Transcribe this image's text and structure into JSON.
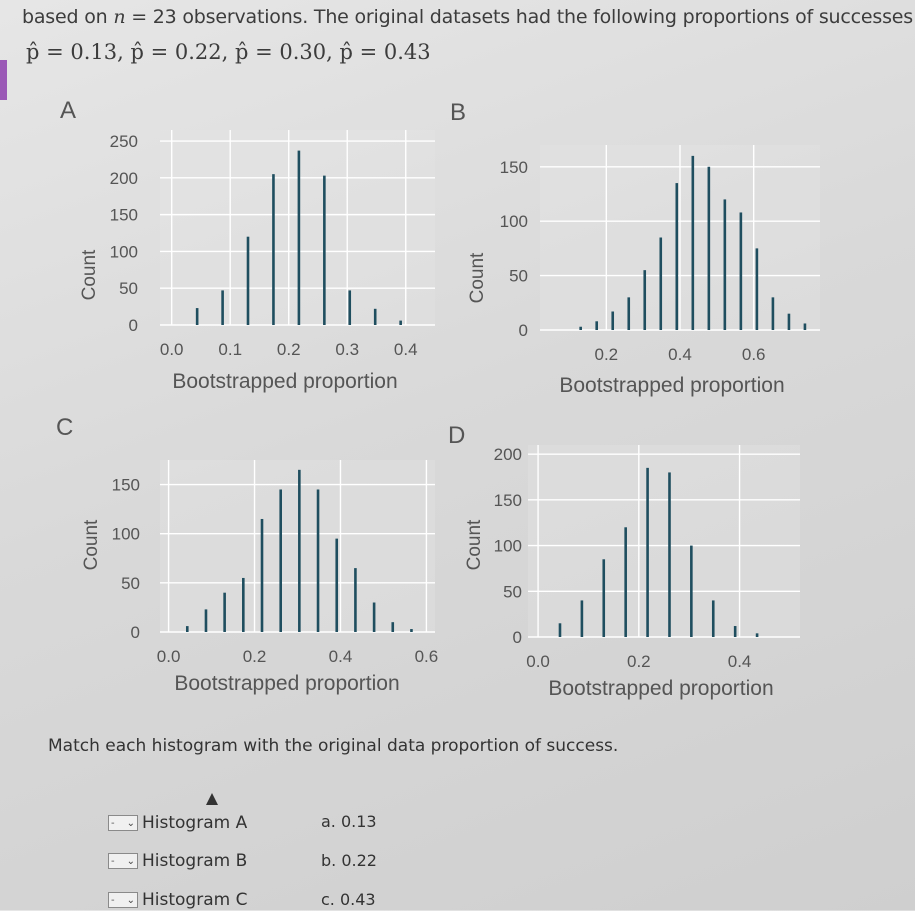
{
  "header": {
    "line1_pre": "based on ",
    "line1_n": "n",
    "line1_eq": " = 23",
    "line1_post": " observations. The original datasets had the following proportions of successes:",
    "line2": "p̂ = 0.13, p̂ = 0.22, p̂ = 0.30, p̂ = 0.43"
  },
  "chart_data": [
    {
      "panel": "A",
      "type": "bar",
      "xlabel": "Bootstrapped proportion",
      "ylabel": "Count",
      "xlim": [
        -0.02,
        0.45
      ],
      "ylim": [
        0,
        265
      ],
      "xticks": [
        "0.0",
        "0.1",
        "0.2",
        "0.3",
        "0.4"
      ],
      "yticks": [
        "250",
        "200",
        "150",
        "100",
        "50",
        "0"
      ],
      "x": [
        0.0435,
        0.087,
        0.1304,
        0.1739,
        0.2174,
        0.2609,
        0.3043,
        0.3478,
        0.3913
      ],
      "values": [
        23,
        47,
        120,
        205,
        237,
        203,
        47,
        22,
        6
      ],
      "color": "#1f4e5f"
    },
    {
      "panel": "B",
      "type": "bar",
      "xlabel": "Bootstrapped proportion",
      "ylabel": "Count",
      "xlim": [
        0.02,
        0.78
      ],
      "ylim": [
        0,
        170
      ],
      "xticks": [
        "0.2",
        "0.4",
        "0.6"
      ],
      "yticks": [
        "150",
        "100",
        "50",
        "0"
      ],
      "x": [
        0.1304,
        0.1739,
        0.2174,
        0.2609,
        0.3043,
        0.3478,
        0.3913,
        0.4348,
        0.4783,
        0.5217,
        0.5652,
        0.6087,
        0.6522,
        0.6957,
        0.7391
      ],
      "values": [
        3,
        8,
        17,
        30,
        55,
        85,
        135,
        160,
        150,
        120,
        108,
        75,
        30,
        15,
        6
      ],
      "color": "#1f4e5f"
    },
    {
      "panel": "C",
      "type": "bar",
      "xlabel": "Bootstrapped proportion",
      "ylabel": "Count",
      "xlim": [
        -0.02,
        0.62
      ],
      "ylim": [
        0,
        175
      ],
      "xticks": [
        "0.0",
        "0.2",
        "0.4",
        "0.6"
      ],
      "yticks": [
        "150",
        "100",
        "50",
        "0"
      ],
      "x": [
        0.0435,
        0.087,
        0.1304,
        0.1739,
        0.2174,
        0.2609,
        0.3043,
        0.3478,
        0.3913,
        0.4348,
        0.4783,
        0.5217,
        0.5652
      ],
      "values": [
        6,
        23,
        40,
        55,
        115,
        145,
        165,
        145,
        95,
        65,
        30,
        10,
        3
      ],
      "color": "#1f4e5f"
    },
    {
      "panel": "D",
      "type": "bar",
      "xlabel": "Bootstrapped proportion",
      "ylabel": "Count",
      "xlim": [
        -0.02,
        0.52
      ],
      "ylim": [
        0,
        210
      ],
      "xticks": [
        "0.0",
        "0.2",
        "0.4"
      ],
      "yticks": [
        "200",
        "150",
        "100",
        "50",
        "0"
      ],
      "x": [
        0.0435,
        0.087,
        0.1304,
        0.1739,
        0.2174,
        0.2609,
        0.3043,
        0.3478,
        0.3913,
        0.4348
      ],
      "values": [
        15,
        40,
        85,
        120,
        185,
        180,
        100,
        40,
        12,
        4
      ],
      "color": "#1f4e5f"
    }
  ],
  "question": "Match each histogram with the original data proportion of success.",
  "matches": [
    {
      "dropdown_value": "-",
      "label": "Histogram A"
    },
    {
      "dropdown_value": "-",
      "label": "Histogram B"
    },
    {
      "dropdown_value": "-",
      "label": "Histogram C"
    }
  ],
  "options": [
    "a. 0.13",
    "b. 0.22",
    "c. 0.43"
  ]
}
